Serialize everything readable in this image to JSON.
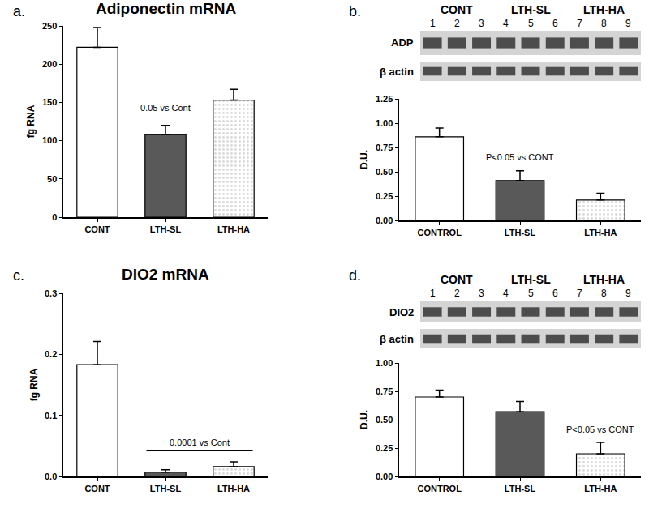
{
  "chart_data": [
    {
      "type": "bar",
      "label": "a.",
      "title": "Adiponectin mRNA",
      "y_label": "fg RNA",
      "categories": [
        "CONT",
        "LTH-SL",
        "LTH-HA"
      ],
      "values": [
        222,
        108,
        153
      ],
      "errors": [
        26,
        12,
        14
      ],
      "colors": [
        "#ffffff",
        "#595959",
        "#d9d9d9"
      ],
      "ylim": [
        0,
        250
      ],
      "yticks": [
        0,
        50,
        100,
        150,
        200,
        250
      ],
      "annotations": [
        {
          "text": "0.05 vs Cont",
          "category": "LTH-SL"
        }
      ]
    },
    {
      "type": "bar",
      "label": "b.",
      "y_label": "D.U.",
      "categories": [
        "CONTROL",
        "LTH-SL",
        "LTH-HA"
      ],
      "values": [
        0.86,
        0.41,
        0.21
      ],
      "errors": [
        0.09,
        0.1,
        0.07
      ],
      "colors": [
        "#ffffff",
        "#595959",
        "#d9d9d9"
      ],
      "ylim": [
        0,
        1.25
      ],
      "yticks": [
        {
          "value": 0,
          "label": "0.00"
        },
        {
          "value": 0.25,
          "label": "0.25"
        },
        {
          "value": 0.5,
          "label": "0.50"
        },
        {
          "value": 0.75,
          "label": "0.75"
        },
        {
          "value": 1,
          "label": "1.00"
        },
        {
          "value": 1.25,
          "label": "1.25"
        }
      ],
      "annotations": [
        {
          "text": "P<0.05 vs CONT",
          "category": "LTH-SL"
        }
      ],
      "blot": {
        "groups": [
          "CONT",
          "LTH-SL",
          "LTH-HA"
        ],
        "lanes": [
          "1",
          "2",
          "3",
          "4",
          "5",
          "6",
          "7",
          "8",
          "9"
        ],
        "rows": [
          "ADP",
          "β actin"
        ]
      }
    },
    {
      "type": "bar",
      "label": "c.",
      "title": "DIO2 mRNA",
      "y_label": "fg RNA",
      "categories": [
        "CONT",
        "LTH-SL",
        "LTH-HA"
      ],
      "values": [
        0.183,
        0.007,
        0.016
      ],
      "errors": [
        0.038,
        0.004,
        0.008
      ],
      "colors": [
        "#ffffff",
        "#595959",
        "#d9d9d9"
      ],
      "ylim": [
        0,
        0.3
      ],
      "yticks": [
        {
          "value": 0,
          "label": "0.0"
        },
        {
          "value": 0.1,
          "label": "0.1"
        },
        {
          "value": 0.2,
          "label": "0.2"
        },
        {
          "value": 0.3,
          "label": "0.3"
        }
      ],
      "annotations": [
        {
          "text": "0.0001 vs Cont",
          "categories": [
            "LTH-SL",
            "LTH-HA"
          ]
        }
      ]
    },
    {
      "type": "bar",
      "label": "d.",
      "y_label": "D.U.",
      "categories": [
        "CONTROL",
        "LTH-SL",
        "LTH-HA"
      ],
      "values": [
        0.7,
        0.57,
        0.2
      ],
      "errors": [
        0.06,
        0.09,
        0.1
      ],
      "colors": [
        "#ffffff",
        "#595959",
        "#d9d9d9"
      ],
      "ylim": [
        0,
        1
      ],
      "yticks": [
        {
          "value": 0,
          "label": "0.00"
        },
        {
          "value": 0.25,
          "label": "0.25"
        },
        {
          "value": 0.5,
          "label": "0.50"
        },
        {
          "value": 0.75,
          "label": "0.75"
        },
        {
          "value": 1,
          "label": "1.00"
        }
      ],
      "annotations": [
        {
          "text": "P<0.05 vs CONT",
          "category": "LTH-HA"
        }
      ],
      "blot": {
        "groups": [
          "CONT",
          "LTH-SL",
          "LTH-HA"
        ],
        "lanes": [
          "1",
          "2",
          "3",
          "4",
          "5",
          "6",
          "7",
          "8",
          "9"
        ],
        "rows": [
          "DIO2",
          "β actin"
        ]
      }
    }
  ]
}
